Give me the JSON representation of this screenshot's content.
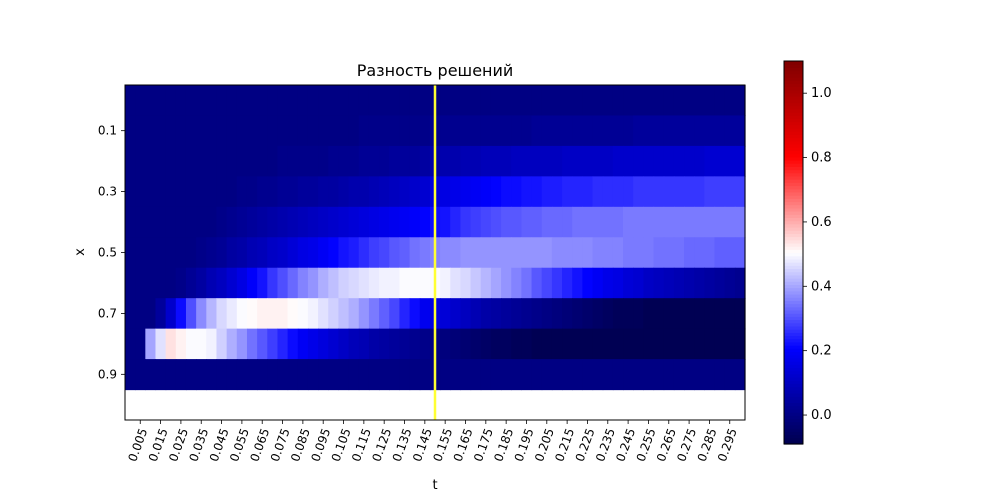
{
  "chart_data": {
    "type": "heatmap",
    "title": "Разность решений",
    "xlabel": "t",
    "ylabel": "x",
    "colormap": "seismic",
    "colormap_stops": [
      "#00004d",
      "#0000ff",
      "#ffffff",
      "#ff0000",
      "#800000"
    ],
    "vmin": -0.09,
    "vmax": 1.1,
    "x_tick_labels": [
      "0.005",
      "0.015",
      "0.025",
      "0.035",
      "0.045",
      "0.055",
      "0.065",
      "0.075",
      "0.085",
      "0.095",
      "0.105",
      "0.115",
      "0.125",
      "0.135",
      "0.145",
      "0.155",
      "0.165",
      "0.175",
      "0.185",
      "0.195",
      "0.205",
      "0.215",
      "0.225",
      "0.235",
      "0.245",
      "0.255",
      "0.265",
      "0.275",
      "0.285",
      "0.295"
    ],
    "y_tick_labels": [
      "0.1",
      "0.3",
      "0.5",
      "0.7",
      "0.9"
    ],
    "colorbar_ticks": [
      0.0,
      0.2,
      0.4,
      0.6,
      0.8,
      1.0
    ],
    "colorbar_tick_labels": [
      "0.0",
      "0.2",
      "0.4",
      "0.6",
      "0.8",
      "1.0"
    ],
    "marker_line": {
      "t": 0.15,
      "color": "#ffff33"
    },
    "t_values": [
      0.0,
      0.005,
      0.01,
      0.015,
      0.02,
      0.025,
      0.03,
      0.035,
      0.04,
      0.045,
      0.05,
      0.055,
      0.06,
      0.065,
      0.07,
      0.075,
      0.08,
      0.085,
      0.09,
      0.095,
      0.1,
      0.105,
      0.11,
      0.115,
      0.12,
      0.125,
      0.13,
      0.135,
      0.14,
      0.145,
      0.15,
      0.155,
      0.16,
      0.165,
      0.17,
      0.175,
      0.18,
      0.185,
      0.19,
      0.195,
      0.2,
      0.205,
      0.21,
      0.215,
      0.22,
      0.225,
      0.23,
      0.235,
      0.24,
      0.245,
      0.25,
      0.255,
      0.26,
      0.265,
      0.27,
      0.275,
      0.28,
      0.285,
      0.29,
      0.295,
      0.3
    ],
    "x_values": [
      0.0,
      0.1,
      0.2,
      0.3,
      0.4,
      0.5,
      0.6,
      0.7,
      0.8,
      0.9,
      1.0
    ],
    "z": [
      [
        0,
        0,
        0,
        0,
        0,
        0,
        0,
        0,
        0,
        0,
        0,
        0,
        0,
        0,
        0,
        0,
        0,
        0,
        0,
        0,
        0,
        0,
        0,
        0,
        0,
        0,
        0,
        0,
        0,
        0,
        0,
        0,
        0,
        0,
        0,
        0,
        0,
        0,
        0,
        0,
        0,
        0,
        0,
        0,
        0,
        0,
        0,
        0,
        0,
        0,
        0,
        0,
        0,
        0,
        0,
        0,
        0,
        0,
        0,
        0,
        0
      ],
      [
        0,
        0,
        0,
        0,
        0,
        0,
        0,
        0,
        0,
        0,
        0,
        0,
        0,
        0,
        0,
        0,
        0,
        0,
        0,
        0,
        0,
        0,
        0,
        0.01,
        0.01,
        0.01,
        0.01,
        0.01,
        0.01,
        0.01,
        0.02,
        0.02,
        0.02,
        0.02,
        0.02,
        0.02,
        0.02,
        0.02,
        0.02,
        0.02,
        0.03,
        0.03,
        0.03,
        0.03,
        0.03,
        0.03,
        0.03,
        0.03,
        0.03,
        0.03,
        0.04,
        0.04,
        0.04,
        0.04,
        0.04,
        0.04,
        0.04,
        0.04,
        0.04,
        0.04,
        0.04
      ],
      [
        0,
        0,
        0,
        0,
        0,
        0,
        0,
        0,
        0,
        0,
        0,
        0,
        0,
        0,
        0,
        0.01,
        0.01,
        0.01,
        0.01,
        0.01,
        0.02,
        0.02,
        0.02,
        0.03,
        0.03,
        0.03,
        0.04,
        0.04,
        0.04,
        0.05,
        0.06,
        0.07,
        0.07,
        0.08,
        0.08,
        0.09,
        0.09,
        0.09,
        0.1,
        0.1,
        0.1,
        0.1,
        0.1,
        0.11,
        0.11,
        0.11,
        0.11,
        0.11,
        0.12,
        0.12,
        0.12,
        0.12,
        0.12,
        0.12,
        0.12,
        0.12,
        0.12,
        0.13,
        0.13,
        0.13,
        0.13
      ],
      [
        0,
        0,
        0,
        0,
        0,
        0,
        0,
        0,
        0,
        0,
        0,
        0.01,
        0.01,
        0.02,
        0.02,
        0.03,
        0.03,
        0.04,
        0.04,
        0.05,
        0.05,
        0.06,
        0.07,
        0.07,
        0.08,
        0.09,
        0.1,
        0.11,
        0.12,
        0.13,
        0.15,
        0.16,
        0.17,
        0.18,
        0.19,
        0.2,
        0.21,
        0.22,
        0.22,
        0.23,
        0.23,
        0.24,
        0.24,
        0.25,
        0.25,
        0.25,
        0.26,
        0.26,
        0.26,
        0.26,
        0.27,
        0.27,
        0.27,
        0.27,
        0.27,
        0.27,
        0.27,
        0.28,
        0.28,
        0.28,
        0.28
      ],
      [
        0,
        0,
        0,
        0,
        0,
        0,
        0,
        0,
        0,
        0.01,
        0.02,
        0.03,
        0.04,
        0.05,
        0.06,
        0.07,
        0.08,
        0.09,
        0.1,
        0.11,
        0.12,
        0.13,
        0.14,
        0.15,
        0.16,
        0.17,
        0.18,
        0.19,
        0.2,
        0.21,
        0.22,
        0.23,
        0.25,
        0.27,
        0.28,
        0.29,
        0.3,
        0.31,
        0.31,
        0.32,
        0.32,
        0.33,
        0.33,
        0.33,
        0.34,
        0.34,
        0.34,
        0.34,
        0.34,
        0.35,
        0.35,
        0.35,
        0.35,
        0.35,
        0.35,
        0.35,
        0.35,
        0.35,
        0.35,
        0.35,
        0.35
      ],
      [
        0,
        0,
        0,
        0,
        0,
        0,
        0,
        0.01,
        0.02,
        0.03,
        0.05,
        0.06,
        0.08,
        0.09,
        0.11,
        0.12,
        0.14,
        0.16,
        0.17,
        0.19,
        0.21,
        0.23,
        0.24,
        0.26,
        0.28,
        0.29,
        0.31,
        0.32,
        0.34,
        0.35,
        0.36,
        0.37,
        0.37,
        0.38,
        0.38,
        0.38,
        0.38,
        0.38,
        0.38,
        0.38,
        0.38,
        0.38,
        0.37,
        0.37,
        0.37,
        0.37,
        0.36,
        0.36,
        0.36,
        0.35,
        0.35,
        0.35,
        0.34,
        0.34,
        0.34,
        0.33,
        0.33,
        0.33,
        0.32,
        0.32,
        0.32
      ],
      [
        0,
        0,
        0,
        0,
        0,
        0.01,
        0.03,
        0.05,
        0.08,
        0.1,
        0.13,
        0.16,
        0.2,
        0.23,
        0.27,
        0.3,
        0.33,
        0.36,
        0.38,
        0.41,
        0.43,
        0.45,
        0.46,
        0.47,
        0.48,
        0.49,
        0.49,
        0.5,
        0.5,
        0.5,
        0.5,
        0.49,
        0.47,
        0.46,
        0.44,
        0.42,
        0.4,
        0.38,
        0.36,
        0.34,
        0.31,
        0.29,
        0.27,
        0.25,
        0.23,
        0.21,
        0.19,
        0.17,
        0.16,
        0.14,
        0.13,
        0.11,
        0.1,
        0.09,
        0.08,
        0.07,
        0.06,
        0.05,
        0.04,
        0.03,
        0.02
      ],
      [
        0,
        0,
        0,
        0.04,
        0.12,
        0.22,
        0.3,
        0.37,
        0.42,
        0.46,
        0.48,
        0.5,
        0.51,
        0.52,
        0.52,
        0.52,
        0.51,
        0.5,
        0.49,
        0.47,
        0.45,
        0.43,
        0.41,
        0.38,
        0.35,
        0.32,
        0.29,
        0.25,
        0.22,
        0.18,
        0.16,
        0.14,
        0.12,
        0.1,
        0.08,
        0.06,
        0.05,
        0.04,
        0.03,
        0.02,
        0.01,
        0,
        -0.01,
        -0.02,
        -0.03,
        -0.04,
        -0.05,
        -0.06,
        -0.07,
        -0.07,
        -0.07,
        -0.08,
        -0.08,
        -0.08,
        -0.08,
        -0.08,
        -0.08,
        -0.08,
        -0.08,
        -0.08,
        -0.08
      ],
      [
        0,
        0,
        0.4,
        0.47,
        0.54,
        0.52,
        0.5,
        0.5,
        0.49,
        0.45,
        0.41,
        0.38,
        0.34,
        0.31,
        0.28,
        0.25,
        0.22,
        0.19,
        0.17,
        0.15,
        0.13,
        0.11,
        0.09,
        0.08,
        0.06,
        0.05,
        0.04,
        0.03,
        0.02,
        0.01,
        0,
        -0.01,
        -0.02,
        -0.03,
        -0.04,
        -0.05,
        -0.06,
        -0.06,
        -0.07,
        -0.07,
        -0.08,
        -0.08,
        -0.08,
        -0.08,
        -0.08,
        -0.08,
        -0.08,
        -0.08,
        -0.08,
        -0.08,
        -0.08,
        -0.08,
        -0.08,
        -0.08,
        -0.08,
        -0.08,
        -0.08,
        -0.08,
        -0.08,
        -0.08,
        -0.08
      ],
      [
        0,
        0,
        0,
        0,
        0,
        0,
        0,
        0,
        0,
        0,
        0,
        0,
        0,
        0,
        0,
        0,
        0,
        0,
        0,
        0,
        0,
        0,
        0,
        0,
        0,
        0,
        0,
        0,
        0,
        0,
        0,
        0,
        0,
        0,
        0,
        0,
        0,
        0,
        0,
        0,
        0,
        0,
        0,
        0,
        0,
        0,
        0,
        0,
        0,
        0,
        0,
        0,
        0,
        0,
        0,
        0,
        0,
        0,
        0,
        0,
        0
      ]
    ]
  }
}
